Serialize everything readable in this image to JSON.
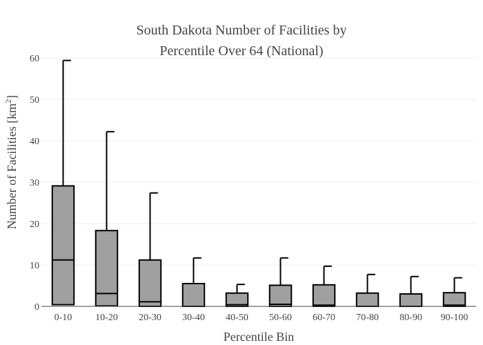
{
  "chart_data": {
    "type": "box",
    "title_lines": [
      "South Dakota Number of Facilities by",
      "Percentile Over 64 (National)"
    ],
    "xlabel": "Percentile Bin",
    "ylabel_text": "Number of Facilities  [km",
    "ylabel_sup": "2",
    "ylabel_end": "]",
    "ylim": [
      0,
      60
    ],
    "yticks": [
      0,
      10,
      20,
      30,
      40,
      50,
      60
    ],
    "grid": true,
    "box_color": "#a0a0a0",
    "line_color": "#000000",
    "categories": [
      "0-10",
      "10-20",
      "20-30",
      "30-40",
      "40-50",
      "50-60",
      "60-70",
      "70-80",
      "80-90",
      "90-100"
    ],
    "boxes": [
      {
        "min": 0,
        "q1": 0.4,
        "median": 11.2,
        "q3": 29.1,
        "max": 59.4
      },
      {
        "min": 0,
        "q1": 0.1,
        "median": 3.1,
        "q3": 18.3,
        "max": 42.2
      },
      {
        "min": 0,
        "q1": 0.0,
        "median": 1.1,
        "q3": 11.2,
        "max": 27.4
      },
      {
        "min": 0,
        "q1": 0.0,
        "median": 0.0,
        "q3": 5.5,
        "max": 11.7
      },
      {
        "min": 0,
        "q1": 0.0,
        "median": 0.4,
        "q3": 3.2,
        "max": 5.3
      },
      {
        "min": 0,
        "q1": 0.0,
        "median": 0.5,
        "q3": 5.1,
        "max": 11.7
      },
      {
        "min": 0,
        "q1": 0.0,
        "median": 0.3,
        "q3": 5.2,
        "max": 9.7
      },
      {
        "min": 0,
        "q1": 0.0,
        "median": 0.0,
        "q3": 3.2,
        "max": 7.7
      },
      {
        "min": 0,
        "q1": 0.0,
        "median": 0.0,
        "q3": 3.0,
        "max": 7.2
      },
      {
        "min": 0,
        "q1": 0.0,
        "median": 0.3,
        "q3": 3.3,
        "max": 6.9
      }
    ]
  }
}
